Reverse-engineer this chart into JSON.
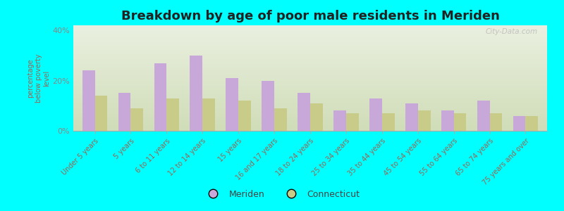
{
  "title": "Breakdown by age of poor male residents in Meriden",
  "ylabel": "percentage\nbelow poverty\nlevel",
  "categories": [
    "Under 5 years",
    "5 years",
    "6 to 11 years",
    "12 to 14 years",
    "15 years",
    "16 and 17 years",
    "18 to 24 years",
    "25 to 34 years",
    "35 to 44 years",
    "45 to 54 years",
    "55 to 64 years",
    "65 to 74 years",
    "75 years and over"
  ],
  "meriden_values": [
    24,
    15,
    27,
    30,
    21,
    20,
    15,
    8,
    13,
    11,
    8,
    12,
    6
  ],
  "connecticut_values": [
    14,
    9,
    13,
    13,
    12,
    9,
    11,
    7,
    7,
    8,
    7,
    7,
    6
  ],
  "meriden_color": "#c8a8d8",
  "connecticut_color": "#c8cc88",
  "background_color": "#00ffff",
  "plot_bg_topleft": "#eaf0e0",
  "plot_bg_topright": "#f5f5ee",
  "plot_bg_bottom": "#d0ddb8",
  "ylim": [
    0,
    42
  ],
  "yticks": [
    0,
    20,
    40
  ],
  "bar_width": 0.35,
  "title_fontsize": 13,
  "legend_labels": [
    "Meriden",
    "Connecticut"
  ],
  "watermark": "City-Data.com",
  "label_color": "#996655",
  "ytick_color": "#888888"
}
